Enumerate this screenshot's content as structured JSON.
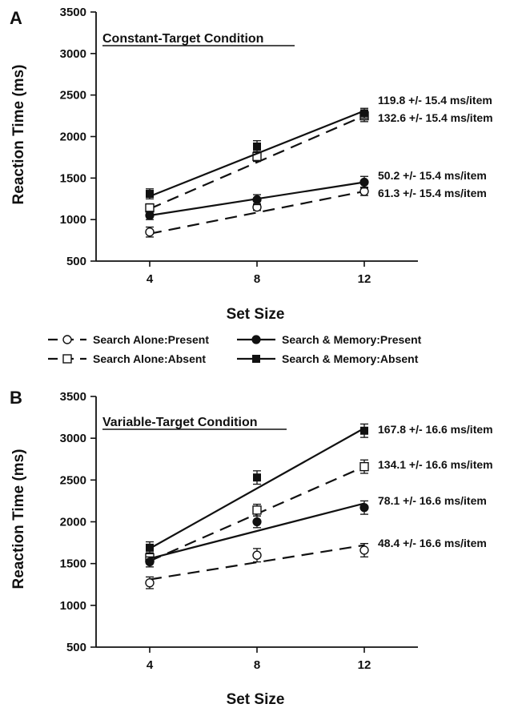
{
  "chart_data": [
    {
      "type": "line",
      "panel": "A",
      "title": "Constant-Target Condition",
      "xlabel": "Set Size",
      "ylabel": "Reaction Time (ms)",
      "x": [
        4,
        8,
        12
      ],
      "xticks": [
        "4",
        "8",
        "12"
      ],
      "ylim": [
        500,
        3500
      ],
      "yticks": [
        "500",
        "1000",
        "1500",
        "2000",
        "2500",
        "3000",
        "3500"
      ],
      "grid": false,
      "series": [
        {
          "name": "Search Alone:Present",
          "marker": "open-circle",
          "line": "dashed",
          "values": [
            850,
            1150,
            1340
          ],
          "errors": [
            60,
            40,
            50
          ],
          "fit": [
            830,
            1340
          ]
        },
        {
          "name": "Search Alone:Absent",
          "marker": "open-square",
          "line": "dashed",
          "values": [
            1140,
            1760,
            2250
          ],
          "errors": [
            50,
            60,
            70
          ],
          "fit": [
            1130,
            2250
          ]
        },
        {
          "name": "Search & Memory:Present",
          "marker": "filled-circle",
          "line": "solid",
          "values": [
            1050,
            1240,
            1450
          ],
          "errors": [
            50,
            60,
            70
          ],
          "fit": [
            1050,
            1450
          ]
        },
        {
          "name": "Search & Memory:Absent",
          "marker": "filled-square",
          "line": "solid",
          "values": [
            1310,
            1880,
            2280
          ],
          "errors": [
            60,
            70,
            60
          ],
          "fit": [
            1280,
            2310
          ]
        }
      ],
      "annotations": [
        {
          "text": "119.8 +/- 15.4 ms/item",
          "series": "Search & Memory:Absent"
        },
        {
          "text": "132.6 +/- 15.4 ms/item",
          "series": "Search Alone:Absent"
        },
        {
          "text": "50.2 +/- 15.4 ms/item",
          "series": "Search & Memory:Present"
        },
        {
          "text": "61.3 +/- 15.4 ms/item",
          "series": "Search Alone:Present"
        }
      ]
    },
    {
      "type": "line",
      "panel": "B",
      "title": "Variable-Target Condition",
      "xlabel": "Set Size",
      "ylabel": "Reaction Time (ms)",
      "x": [
        4,
        8,
        12
      ],
      "xticks": [
        "4",
        "8",
        "12"
      ],
      "ylim": [
        500,
        3500
      ],
      "yticks": [
        "500",
        "1000",
        "1500",
        "2000",
        "2500",
        "3000",
        "3500"
      ],
      "grid": false,
      "series": [
        {
          "name": "Search Alone:Present",
          "marker": "open-circle",
          "line": "dashed",
          "values": [
            1270,
            1600,
            1660
          ],
          "errors": [
            70,
            80,
            80
          ],
          "fit": [
            1310,
            1720
          ]
        },
        {
          "name": "Search Alone:Absent",
          "marker": "open-square",
          "line": "dashed",
          "values": [
            1570,
            2140,
            2660
          ],
          "errors": [
            60,
            70,
            80
          ],
          "fit": [
            1530,
            2660
          ]
        },
        {
          "name": "Search & Memory:Present",
          "marker": "filled-circle",
          "line": "solid",
          "values": [
            1520,
            2000,
            2170
          ],
          "errors": [
            60,
            70,
            80
          ],
          "fit": [
            1560,
            2220
          ]
        },
        {
          "name": "Search & Memory:Absent",
          "marker": "filled-square",
          "line": "solid",
          "values": [
            1690,
            2530,
            3090
          ],
          "errors": [
            70,
            80,
            80
          ],
          "fit": [
            1680,
            3120
          ]
        }
      ],
      "annotations": [
        {
          "text": "167.8 +/- 16.6 ms/item",
          "series": "Search & Memory:Absent"
        },
        {
          "text": "134.1 +/- 16.6 ms/item",
          "series": "Search Alone:Absent"
        },
        {
          "text": "78.1 +/- 16.6 ms/item",
          "series": "Search & Memory:Present"
        },
        {
          "text": "48.4 +/- 16.6 ms/item",
          "series": "Search Alone:Present"
        }
      ]
    }
  ],
  "legend": {
    "position": "between-panels",
    "items": [
      {
        "label": "Search Alone:Present",
        "marker": "open-circle",
        "line": "dashed"
      },
      {
        "label": "Search & Memory:Present",
        "marker": "filled-circle",
        "line": "solid"
      },
      {
        "label": "Search Alone:Absent",
        "marker": "open-square",
        "line": "dashed"
      },
      {
        "label": "Search & Memory:Absent",
        "marker": "filled-square",
        "line": "solid"
      }
    ]
  }
}
